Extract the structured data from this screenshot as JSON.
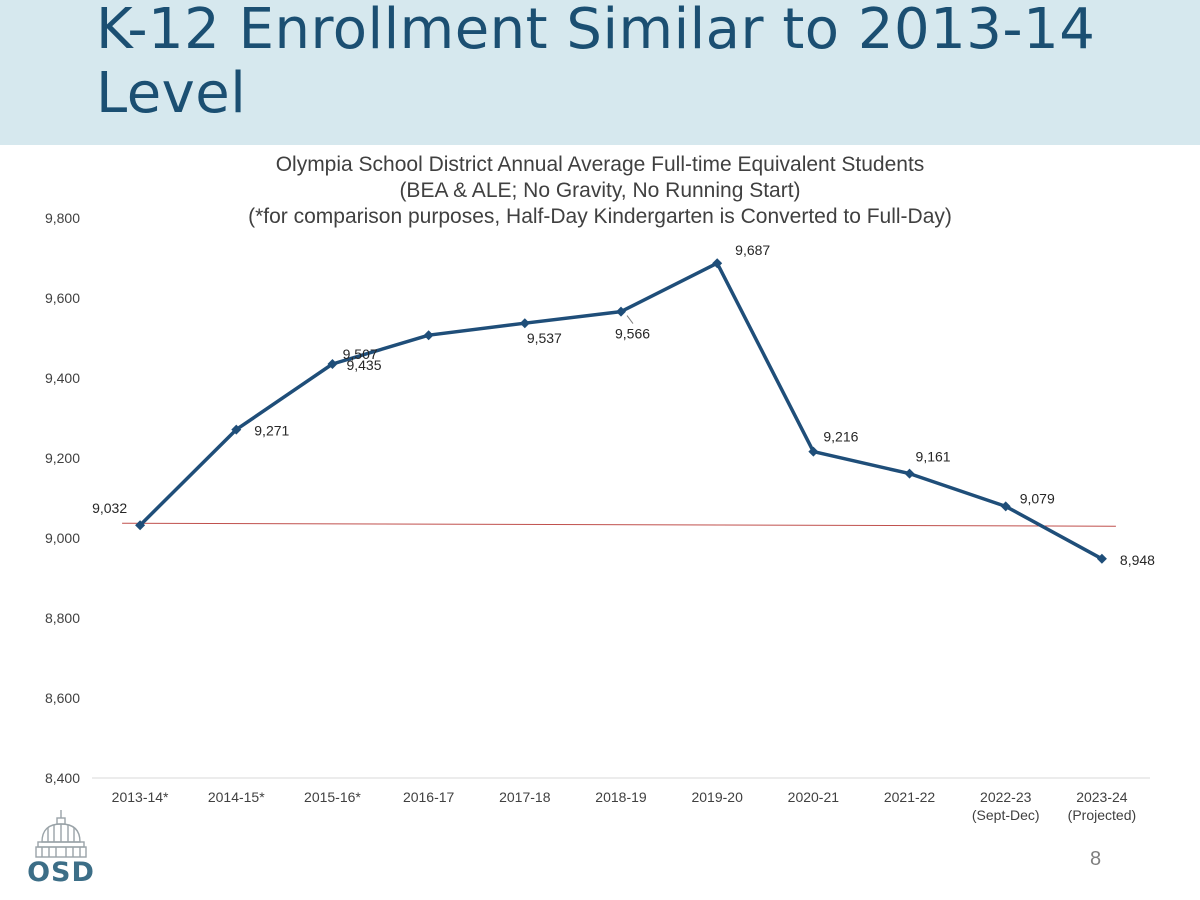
{
  "slide": {
    "title": "K-12 Enrollment Similar to 2013-14 Level",
    "page_number": "8",
    "logo_text": "OSD"
  },
  "chart_data": {
    "type": "line",
    "title_lines": [
      "Olympia School District Annual Average Full-time Equivalent Students",
      "(BEA & ALE; No Gravity, No Running Start)",
      "(*for comparison purposes, Half-Day Kindergarten is Converted to Full-Day)"
    ],
    "categories": [
      [
        "2013-14*"
      ],
      [
        "2014-15*"
      ],
      [
        "2015-16*"
      ],
      [
        "2016-17"
      ],
      [
        "2017-18"
      ],
      [
        "2018-19"
      ],
      [
        "2019-20"
      ],
      [
        "2020-21"
      ],
      [
        "2021-22"
      ],
      [
        "2022-23",
        "(Sept-Dec)"
      ],
      [
        "2023-24",
        "(Projected)"
      ]
    ],
    "series": [
      {
        "values": [
          9032,
          9271,
          9435,
          9507,
          9537,
          9566,
          9687,
          9216,
          9161,
          9079,
          8948
        ],
        "labels": [
          "9,032",
          "9,271",
          "9,435",
          "9,507",
          "9,537",
          "9,566",
          "9,687",
          "9,216",
          "9,161",
          "9,079",
          "8,948"
        ],
        "color": "#1f4e79"
      }
    ],
    "reference_line": {
      "value": 9032,
      "color": "#c0504d"
    },
    "y_axis": {
      "min": 8400,
      "max": 9800,
      "ticks": [
        8400,
        8600,
        8800,
        9000,
        9200,
        9400,
        9600,
        9800
      ],
      "tick_labels": [
        "8,400",
        "8,600",
        "8,800",
        "9,000",
        "9,200",
        "9,400",
        "9,600",
        "9,800"
      ]
    },
    "grid": false,
    "legend": "none"
  }
}
